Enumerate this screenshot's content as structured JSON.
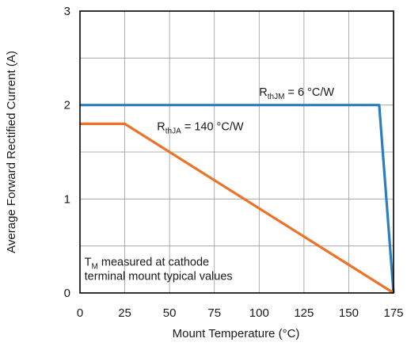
{
  "chart_data": {
    "type": "line",
    "xlabel": "Mount Temperature (°C)",
    "ylabel": "Average Forward Rectified Current (A)",
    "xlim": [
      0,
      175
    ],
    "ylim": [
      0,
      3
    ],
    "xticks": [
      0,
      25,
      50,
      75,
      100,
      125,
      150,
      175
    ],
    "yticks": [
      0,
      1,
      2,
      3
    ],
    "grid": true,
    "series": [
      {
        "color": "#2a7fc1",
        "x": [
          0,
          167,
          175
        ],
        "y": [
          2.0,
          2.0,
          0.0
        ]
      },
      {
        "color": "#ee7227",
        "x": [
          0,
          25,
          175
        ],
        "y": [
          1.8,
          1.8,
          0.0
        ]
      }
    ],
    "annotations": {
      "rthjm": {
        "main": "R",
        "sub": "thJM",
        "rest": " = 6 °C/W",
        "x": 100,
        "y": 2.1
      },
      "rthja": {
        "main": "R",
        "sub": "thJA",
        "rest": " = 140 °C/W",
        "x": 43,
        "y": 1.73
      },
      "note": {
        "main": "T",
        "sub": "M",
        "rest": " measured at cathode",
        "line2": "terminal mount typical values",
        "x": 2.5,
        "y": 0.29
      }
    }
  }
}
